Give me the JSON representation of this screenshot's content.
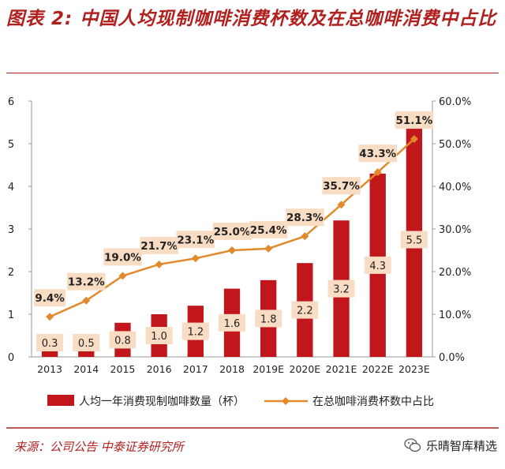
{
  "title": "图表 2: 中国人均现制咖啡消费杯数及在总咖啡消费中占比",
  "source": "来源：公司公告  中泰证券研究所",
  "watermark": "乐晴智库精选",
  "colors": {
    "bar": "#c0161c",
    "line": "#e08a2c",
    "label_bg": "#f9dcc4",
    "title": "#b0201f"
  },
  "chart_data": {
    "type": "bar",
    "categories": [
      "2013",
      "2014",
      "2015",
      "2016",
      "2017",
      "2018",
      "2019E",
      "2020E",
      "2021E",
      "2022E",
      "2023E"
    ],
    "series": [
      {
        "name": "人均一年消费现制咖啡数量（杯）",
        "type": "bar",
        "axis": "left",
        "values": [
          0.3,
          0.5,
          0.8,
          1.0,
          1.2,
          1.6,
          1.8,
          2.2,
          3.2,
          4.3,
          5.5
        ],
        "labels": [
          "0.3",
          "0.5",
          "0.8",
          "1.0",
          "1.2",
          "1.6",
          "1.8",
          "2.2",
          "3.2",
          "4.3",
          "5.5"
        ]
      },
      {
        "name": "在总咖啡消费杯数中占比",
        "type": "line",
        "axis": "right",
        "values": [
          9.4,
          13.2,
          19.0,
          21.7,
          23.1,
          25.0,
          25.4,
          28.3,
          35.7,
          43.3,
          51.1
        ],
        "labels": [
          "9.4%",
          "13.2%",
          "19.0%",
          "21.7%",
          "23.1%",
          "25.0%",
          "25.4%",
          "28.3%",
          "35.7%",
          "43.3%",
          "51.1%"
        ]
      }
    ],
    "y_left": {
      "lim": [
        0,
        6
      ],
      "ticks": [
        "0",
        "1",
        "2",
        "3",
        "4",
        "5",
        "6"
      ]
    },
    "y_right": {
      "lim": [
        0,
        60
      ],
      "ticks": [
        "0.0%",
        "10.0%",
        "20.0%",
        "30.0%",
        "40.0%",
        "50.0%",
        "60.0%"
      ]
    },
    "grid": false,
    "legend_position": "bottom"
  }
}
